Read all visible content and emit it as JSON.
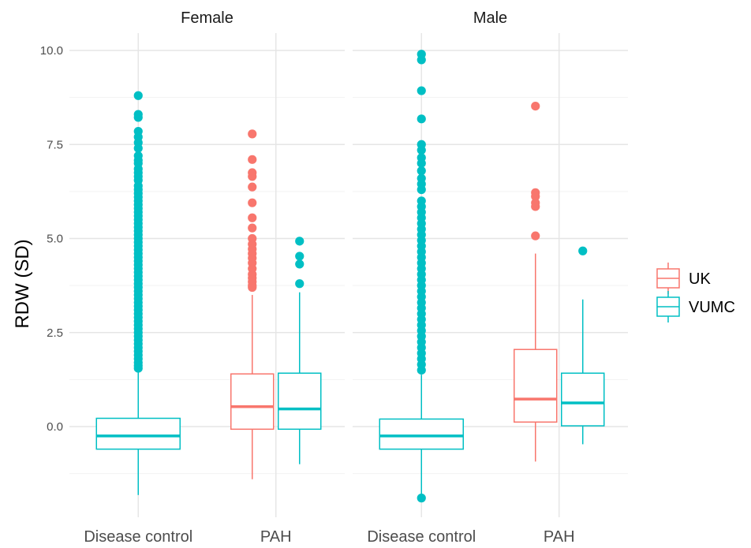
{
  "chart_data": {
    "type": "boxplot",
    "ylabel": "RDW (SD)",
    "xlabel": "",
    "ylim": [
      -2.4,
      10.5
    ],
    "yticks": [
      0.0,
      2.5,
      5.0,
      7.5,
      10.0
    ],
    "ytick_labels": [
      "0.0",
      "2.5",
      "5.0",
      "7.5",
      "10.0"
    ],
    "categories": [
      "Disease control",
      "PAH"
    ],
    "grid": true,
    "legend": {
      "position": "right",
      "entries": [
        {
          "name": "UK",
          "color": "#F8766D"
        },
        {
          "name": "VUMC",
          "color": "#00BFC4"
        }
      ]
    },
    "panels": [
      {
        "strip": "Female",
        "boxes": [
          {
            "category": "Disease control",
            "group": "VUMC",
            "color": "#00BFC4",
            "whisker_low": -1.82,
            "q1": -0.6,
            "median": -0.25,
            "q3": 0.22,
            "whisker_high": 1.45,
            "outliers": [
              8.8,
              8.3,
              8.22,
              7.85,
              7.7,
              7.55,
              7.4,
              7.2,
              7.08,
              7.0,
              6.85,
              6.75,
              6.65,
              6.55,
              6.4,
              6.3,
              6.2,
              6.1,
              6.0,
              5.9,
              5.8,
              5.7,
              5.6,
              5.5,
              5.4,
              5.3,
              5.2,
              5.1,
              5.0,
              4.9,
              4.8,
              4.7,
              4.6,
              4.5,
              4.4,
              4.3,
              4.2,
              4.1,
              4.0,
              3.9,
              3.8,
              3.7,
              3.6,
              3.5,
              3.4,
              3.3,
              3.2,
              3.1,
              3.0,
              2.9,
              2.8,
              2.7,
              2.6,
              2.5,
              2.4,
              2.3,
              2.2,
              2.1,
              2.0,
              1.9,
              1.8,
              1.7,
              1.62,
              1.55
            ]
          },
          {
            "category": "PAH",
            "group": "UK",
            "color": "#F8766D",
            "whisker_low": -1.4,
            "q1": -0.07,
            "median": 0.53,
            "q3": 1.4,
            "whisker_high": 3.5,
            "outliers": [
              7.78,
              7.1,
              6.75,
              6.65,
              6.37,
              5.95,
              5.55,
              5.28,
              5.0,
              4.85,
              4.72,
              4.6,
              4.48,
              4.35,
              4.2,
              4.05,
              3.95,
              3.85,
              3.75,
              3.7
            ]
          },
          {
            "category": "PAH",
            "group": "VUMC",
            "color": "#00BFC4",
            "whisker_low": -1.0,
            "q1": -0.07,
            "median": 0.47,
            "q3": 1.42,
            "whisker_high": 3.57,
            "outliers": [
              4.93,
              4.53,
              4.32,
              3.8
            ]
          }
        ]
      },
      {
        "strip": "Male",
        "boxes": [
          {
            "category": "Disease control",
            "group": "VUMC",
            "color": "#00BFC4",
            "whisker_low": -1.8,
            "q1": -0.6,
            "median": -0.25,
            "q3": 0.2,
            "whisker_high": 1.38,
            "outliers": [
              9.9,
              9.75,
              8.93,
              8.18,
              7.5,
              7.35,
              7.15,
              7.0,
              6.8,
              6.6,
              6.45,
              6.3,
              6.0,
              5.85,
              5.7,
              5.55,
              5.4,
              5.25,
              5.1,
              4.95,
              4.8,
              4.65,
              4.5,
              4.35,
              4.2,
              4.05,
              3.9,
              3.75,
              3.6,
              3.45,
              3.3,
              3.15,
              3.0,
              2.85,
              2.7,
              2.55,
              2.4,
              2.25,
              2.1,
              1.95,
              1.8,
              1.65,
              1.5,
              -1.9
            ]
          },
          {
            "category": "PAH",
            "group": "UK",
            "color": "#F8766D",
            "whisker_low": -0.93,
            "q1": 0.12,
            "median": 0.73,
            "q3": 2.05,
            "whisker_high": 4.6,
            "outliers": [
              8.52,
              6.22,
              6.12,
              5.95,
              5.85,
              5.07
            ]
          },
          {
            "category": "PAH",
            "group": "VUMC",
            "color": "#00BFC4",
            "whisker_low": -0.47,
            "q1": 0.02,
            "median": 0.63,
            "q3": 1.42,
            "whisker_high": 3.38,
            "outliers": [
              4.67
            ]
          }
        ]
      }
    ]
  }
}
